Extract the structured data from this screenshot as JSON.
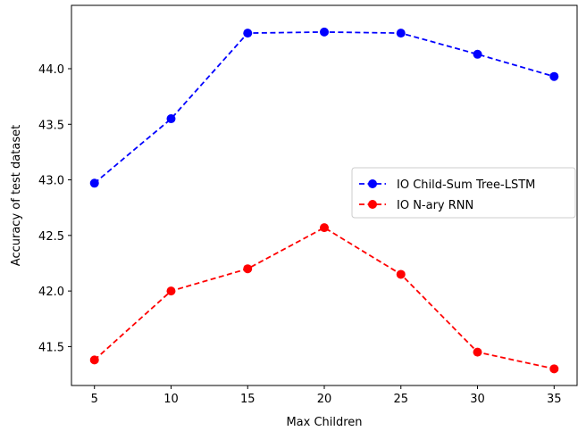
{
  "chart_data": {
    "type": "line",
    "title": "",
    "xlabel": "Max Children",
    "ylabel": "Accuracy of test dataset",
    "x": [
      5,
      10,
      15,
      20,
      25,
      30,
      35
    ],
    "xlim": [
      3.5,
      36.5
    ],
    "ylim": [
      41.15,
      44.57
    ],
    "xticks": [
      "5",
      "10",
      "15",
      "20",
      "25",
      "30",
      "35"
    ],
    "yticks": [
      "41.5",
      "42.0",
      "42.5",
      "43.0",
      "43.5",
      "44.0"
    ],
    "grid": false,
    "legend_position": "center-right",
    "series": [
      {
        "name": "IO Child-Sum Tree-LSTM",
        "color": "#0000ff",
        "style": "dashed",
        "marker": "circle",
        "values": [
          42.97,
          43.55,
          44.32,
          44.33,
          44.32,
          44.13,
          43.93
        ]
      },
      {
        "name": "IO N-ary RNN",
        "color": "#ff0000",
        "style": "dashed",
        "marker": "circle",
        "values": [
          41.38,
          42.0,
          42.2,
          42.57,
          42.15,
          41.45,
          41.3
        ]
      }
    ]
  }
}
